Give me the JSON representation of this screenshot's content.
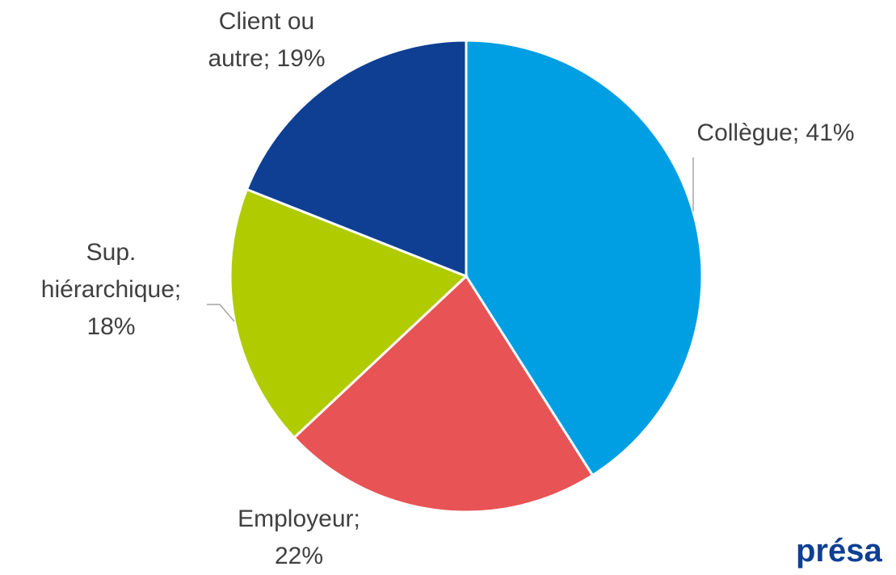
{
  "chart_data": {
    "type": "pie",
    "categories": [
      "Collègue;",
      "Employeur;",
      "Sup. hiérarchique;",
      "Client ou autre;"
    ],
    "values": [
      41,
      22,
      18,
      19
    ],
    "value_labels": [
      "41%",
      "22%",
      "18%",
      "19%"
    ],
    "colors": [
      "#009FE3",
      "#E85355",
      "#B0CB00",
      "#0F3F93"
    ]
  },
  "logo": "présa"
}
